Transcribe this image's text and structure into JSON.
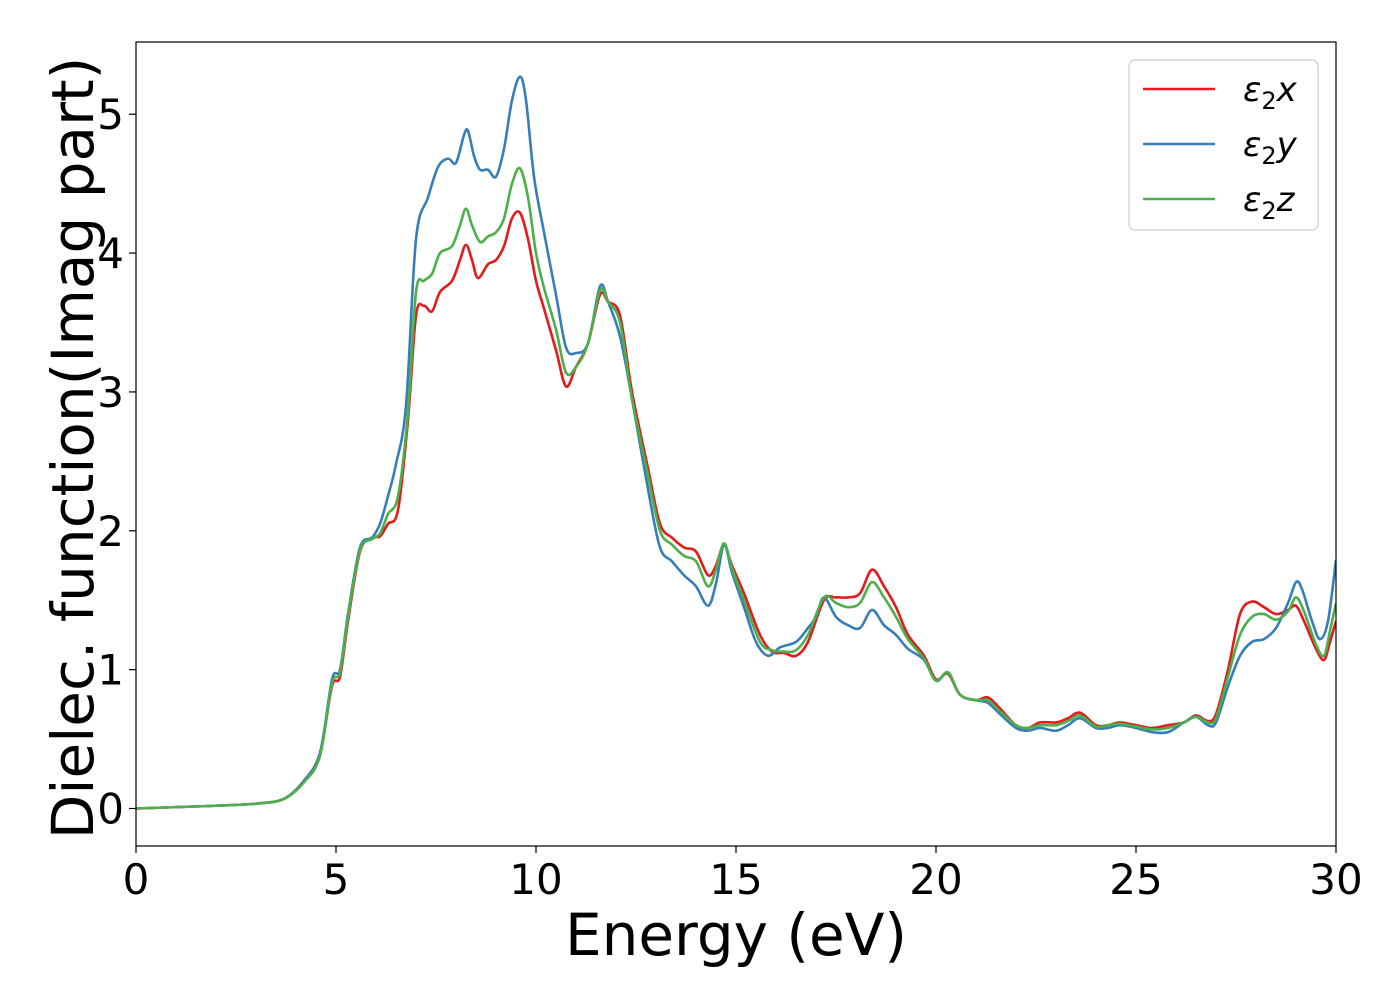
{
  "chart_data": {
    "type": "line",
    "title": "",
    "xlabel": "Energy (eV)",
    "ylabel": "Dielec. function(Imag part)",
    "xlim": [
      0,
      30
    ],
    "ylim": [
      -0.27,
      5.52
    ],
    "xticks": [
      0,
      5,
      10,
      15,
      20,
      25,
      30
    ],
    "xtick_labels": [
      "0",
      "5",
      "10",
      "15",
      "20",
      "25",
      "30"
    ],
    "yticks": [
      0,
      1,
      2,
      3,
      4,
      5
    ],
    "ytick_labels": [
      "0",
      "1",
      "2",
      "3",
      "4",
      "5"
    ],
    "grid": false,
    "legend": "top-right",
    "series": [
      {
        "name": "ε₂x",
        "legend_base": "ε",
        "legend_sub": "2",
        "legend_var": "x",
        "color": "#e41a1c",
        "points": [
          [
            0,
            0.0
          ],
          [
            1,
            0.01
          ],
          [
            2,
            0.02
          ],
          [
            3,
            0.035
          ],
          [
            3.7,
            0.07
          ],
          [
            4.2,
            0.2
          ],
          [
            4.6,
            0.4
          ],
          [
            4.9,
            0.88
          ],
          [
            5.1,
            0.95
          ],
          [
            5.3,
            1.35
          ],
          [
            5.6,
            1.85
          ],
          [
            5.9,
            1.95
          ],
          [
            6.1,
            1.96
          ],
          [
            6.3,
            2.05
          ],
          [
            6.55,
            2.15
          ],
          [
            6.8,
            2.8
          ],
          [
            7.0,
            3.55
          ],
          [
            7.2,
            3.62
          ],
          [
            7.4,
            3.58
          ],
          [
            7.6,
            3.72
          ],
          [
            7.9,
            3.8
          ],
          [
            8.1,
            3.95
          ],
          [
            8.25,
            4.06
          ],
          [
            8.4,
            3.95
          ],
          [
            8.55,
            3.82
          ],
          [
            8.8,
            3.92
          ],
          [
            9.0,
            3.95
          ],
          [
            9.2,
            4.05
          ],
          [
            9.4,
            4.25
          ],
          [
            9.6,
            4.29
          ],
          [
            9.8,
            4.1
          ],
          [
            10.0,
            3.8
          ],
          [
            10.2,
            3.6
          ],
          [
            10.5,
            3.3
          ],
          [
            10.75,
            3.04
          ],
          [
            11.0,
            3.18
          ],
          [
            11.3,
            3.35
          ],
          [
            11.6,
            3.7
          ],
          [
            11.8,
            3.65
          ],
          [
            12.1,
            3.55
          ],
          [
            12.4,
            3.0
          ],
          [
            12.8,
            2.45
          ],
          [
            13.1,
            2.05
          ],
          [
            13.4,
            1.95
          ],
          [
            13.7,
            1.88
          ],
          [
            14.0,
            1.85
          ],
          [
            14.3,
            1.68
          ],
          [
            14.5,
            1.75
          ],
          [
            14.7,
            1.9
          ],
          [
            14.9,
            1.75
          ],
          [
            15.2,
            1.55
          ],
          [
            15.6,
            1.25
          ],
          [
            15.9,
            1.13
          ],
          [
            16.2,
            1.12
          ],
          [
            16.5,
            1.1
          ],
          [
            16.8,
            1.2
          ],
          [
            17.2,
            1.5
          ],
          [
            17.5,
            1.52
          ],
          [
            17.8,
            1.52
          ],
          [
            18.1,
            1.55
          ],
          [
            18.4,
            1.72
          ],
          [
            18.7,
            1.6
          ],
          [
            19.0,
            1.45
          ],
          [
            19.3,
            1.25
          ],
          [
            19.7,
            1.1
          ],
          [
            20.0,
            0.93
          ],
          [
            20.3,
            0.97
          ],
          [
            20.6,
            0.82
          ],
          [
            21.0,
            0.78
          ],
          [
            21.3,
            0.8
          ],
          [
            21.6,
            0.72
          ],
          [
            22.0,
            0.6
          ],
          [
            22.3,
            0.58
          ],
          [
            22.6,
            0.62
          ],
          [
            23.0,
            0.62
          ],
          [
            23.3,
            0.65
          ],
          [
            23.6,
            0.69
          ],
          [
            24.0,
            0.6
          ],
          [
            24.3,
            0.6
          ],
          [
            24.6,
            0.62
          ],
          [
            25.0,
            0.6
          ],
          [
            25.4,
            0.58
          ],
          [
            25.8,
            0.6
          ],
          [
            26.2,
            0.62
          ],
          [
            26.5,
            0.67
          ],
          [
            26.8,
            0.63
          ],
          [
            27.0,
            0.68
          ],
          [
            27.3,
            1.0
          ],
          [
            27.6,
            1.4
          ],
          [
            27.9,
            1.49
          ],
          [
            28.2,
            1.45
          ],
          [
            28.5,
            1.4
          ],
          [
            28.8,
            1.43
          ],
          [
            29.0,
            1.46
          ],
          [
            29.2,
            1.35
          ],
          [
            29.5,
            1.15
          ],
          [
            29.7,
            1.07
          ],
          [
            29.85,
            1.2
          ],
          [
            30.0,
            1.35
          ]
        ]
      },
      {
        "name": "ε₂y",
        "legend_base": "ε",
        "legend_sub": "2",
        "legend_var": "y",
        "color": "#377eb8",
        "points": [
          [
            0,
            0.0
          ],
          [
            1,
            0.01
          ],
          [
            2,
            0.02
          ],
          [
            3,
            0.035
          ],
          [
            3.7,
            0.07
          ],
          [
            4.2,
            0.2
          ],
          [
            4.6,
            0.4
          ],
          [
            4.9,
            0.93
          ],
          [
            5.1,
            1.0
          ],
          [
            5.3,
            1.4
          ],
          [
            5.6,
            1.88
          ],
          [
            5.9,
            1.95
          ],
          [
            6.1,
            2.05
          ],
          [
            6.3,
            2.25
          ],
          [
            6.5,
            2.48
          ],
          [
            6.75,
            2.9
          ],
          [
            7.0,
            4.1
          ],
          [
            7.3,
            4.4
          ],
          [
            7.55,
            4.62
          ],
          [
            7.8,
            4.68
          ],
          [
            8.0,
            4.65
          ],
          [
            8.2,
            4.85
          ],
          [
            8.3,
            4.88
          ],
          [
            8.45,
            4.7
          ],
          [
            8.6,
            4.6
          ],
          [
            8.8,
            4.6
          ],
          [
            9.0,
            4.55
          ],
          [
            9.2,
            4.75
          ],
          [
            9.4,
            5.1
          ],
          [
            9.6,
            5.27
          ],
          [
            9.75,
            5.1
          ],
          [
            9.95,
            4.55
          ],
          [
            10.2,
            4.15
          ],
          [
            10.5,
            3.7
          ],
          [
            10.75,
            3.32
          ],
          [
            11.0,
            3.28
          ],
          [
            11.3,
            3.35
          ],
          [
            11.6,
            3.76
          ],
          [
            11.8,
            3.65
          ],
          [
            12.1,
            3.4
          ],
          [
            12.4,
            2.95
          ],
          [
            12.8,
            2.3
          ],
          [
            13.1,
            1.88
          ],
          [
            13.4,
            1.78
          ],
          [
            13.7,
            1.68
          ],
          [
            14.0,
            1.6
          ],
          [
            14.3,
            1.46
          ],
          [
            14.5,
            1.62
          ],
          [
            14.7,
            1.9
          ],
          [
            14.9,
            1.7
          ],
          [
            15.2,
            1.45
          ],
          [
            15.5,
            1.2
          ],
          [
            15.8,
            1.1
          ],
          [
            16.1,
            1.16
          ],
          [
            16.5,
            1.2
          ],
          [
            16.8,
            1.3
          ],
          [
            17.0,
            1.38
          ],
          [
            17.2,
            1.52
          ],
          [
            17.5,
            1.38
          ],
          [
            17.8,
            1.32
          ],
          [
            18.1,
            1.3
          ],
          [
            18.4,
            1.43
          ],
          [
            18.7,
            1.32
          ],
          [
            19.0,
            1.25
          ],
          [
            19.3,
            1.15
          ],
          [
            19.7,
            1.07
          ],
          [
            20.0,
            0.92
          ],
          [
            20.3,
            0.98
          ],
          [
            20.6,
            0.82
          ],
          [
            21.0,
            0.78
          ],
          [
            21.3,
            0.76
          ],
          [
            21.6,
            0.68
          ],
          [
            22.0,
            0.58
          ],
          [
            22.3,
            0.56
          ],
          [
            22.6,
            0.58
          ],
          [
            23.0,
            0.56
          ],
          [
            23.3,
            0.6
          ],
          [
            23.6,
            0.65
          ],
          [
            24.0,
            0.58
          ],
          [
            24.3,
            0.58
          ],
          [
            24.6,
            0.6
          ],
          [
            25.0,
            0.58
          ],
          [
            25.4,
            0.55
          ],
          [
            25.8,
            0.55
          ],
          [
            26.2,
            0.62
          ],
          [
            26.5,
            0.66
          ],
          [
            26.8,
            0.6
          ],
          [
            27.0,
            0.62
          ],
          [
            27.3,
            0.88
          ],
          [
            27.6,
            1.1
          ],
          [
            27.9,
            1.2
          ],
          [
            28.2,
            1.22
          ],
          [
            28.5,
            1.3
          ],
          [
            28.8,
            1.48
          ],
          [
            29.0,
            1.63
          ],
          [
            29.15,
            1.58
          ],
          [
            29.4,
            1.35
          ],
          [
            29.6,
            1.22
          ],
          [
            29.8,
            1.35
          ],
          [
            30.0,
            1.79
          ]
        ]
      },
      {
        "name": "ε₂z",
        "legend_base": "ε",
        "legend_sub": "2",
        "legend_var": "z",
        "color": "#4daf4a",
        "points": [
          [
            0,
            0.0
          ],
          [
            1,
            0.01
          ],
          [
            2,
            0.02
          ],
          [
            3,
            0.035
          ],
          [
            3.7,
            0.07
          ],
          [
            4.2,
            0.19
          ],
          [
            4.6,
            0.38
          ],
          [
            4.9,
            0.9
          ],
          [
            5.1,
            0.98
          ],
          [
            5.3,
            1.38
          ],
          [
            5.6,
            1.86
          ],
          [
            5.9,
            1.94
          ],
          [
            6.1,
            1.98
          ],
          [
            6.3,
            2.12
          ],
          [
            6.55,
            2.25
          ],
          [
            6.8,
            2.85
          ],
          [
            7.0,
            3.72
          ],
          [
            7.2,
            3.8
          ],
          [
            7.4,
            3.85
          ],
          [
            7.6,
            4.0
          ],
          [
            7.9,
            4.05
          ],
          [
            8.1,
            4.2
          ],
          [
            8.25,
            4.32
          ],
          [
            8.4,
            4.2
          ],
          [
            8.6,
            4.08
          ],
          [
            8.8,
            4.12
          ],
          [
            9.0,
            4.15
          ],
          [
            9.2,
            4.25
          ],
          [
            9.4,
            4.5
          ],
          [
            9.6,
            4.61
          ],
          [
            9.8,
            4.4
          ],
          [
            10.0,
            4.0
          ],
          [
            10.2,
            3.75
          ],
          [
            10.5,
            3.45
          ],
          [
            10.75,
            3.14
          ],
          [
            11.0,
            3.18
          ],
          [
            11.3,
            3.35
          ],
          [
            11.6,
            3.73
          ],
          [
            11.8,
            3.65
          ],
          [
            12.1,
            3.5
          ],
          [
            12.4,
            2.95
          ],
          [
            12.8,
            2.4
          ],
          [
            13.1,
            2.0
          ],
          [
            13.4,
            1.9
          ],
          [
            13.7,
            1.82
          ],
          [
            14.0,
            1.78
          ],
          [
            14.3,
            1.6
          ],
          [
            14.5,
            1.72
          ],
          [
            14.7,
            1.91
          ],
          [
            14.9,
            1.73
          ],
          [
            15.2,
            1.5
          ],
          [
            15.6,
            1.2
          ],
          [
            15.9,
            1.14
          ],
          [
            16.2,
            1.13
          ],
          [
            16.5,
            1.14
          ],
          [
            16.8,
            1.25
          ],
          [
            17.2,
            1.52
          ],
          [
            17.5,
            1.48
          ],
          [
            17.8,
            1.45
          ],
          [
            18.1,
            1.48
          ],
          [
            18.4,
            1.63
          ],
          [
            18.7,
            1.52
          ],
          [
            19.0,
            1.38
          ],
          [
            19.3,
            1.22
          ],
          [
            19.7,
            1.08
          ],
          [
            20.0,
            0.92
          ],
          [
            20.3,
            0.98
          ],
          [
            20.6,
            0.82
          ],
          [
            21.0,
            0.78
          ],
          [
            21.3,
            0.78
          ],
          [
            21.6,
            0.7
          ],
          [
            22.0,
            0.6
          ],
          [
            22.3,
            0.58
          ],
          [
            22.6,
            0.6
          ],
          [
            23.0,
            0.6
          ],
          [
            23.3,
            0.63
          ],
          [
            23.6,
            0.67
          ],
          [
            24.0,
            0.59
          ],
          [
            24.3,
            0.6
          ],
          [
            24.6,
            0.61
          ],
          [
            25.0,
            0.59
          ],
          [
            25.4,
            0.57
          ],
          [
            25.8,
            0.58
          ],
          [
            26.2,
            0.62
          ],
          [
            26.5,
            0.66
          ],
          [
            26.8,
            0.62
          ],
          [
            27.0,
            0.65
          ],
          [
            27.3,
            0.95
          ],
          [
            27.6,
            1.25
          ],
          [
            27.9,
            1.38
          ],
          [
            28.2,
            1.4
          ],
          [
            28.5,
            1.36
          ],
          [
            28.8,
            1.42
          ],
          [
            29.0,
            1.52
          ],
          [
            29.2,
            1.42
          ],
          [
            29.5,
            1.18
          ],
          [
            29.7,
            1.1
          ],
          [
            29.85,
            1.28
          ],
          [
            30.0,
            1.48
          ]
        ]
      }
    ]
  }
}
